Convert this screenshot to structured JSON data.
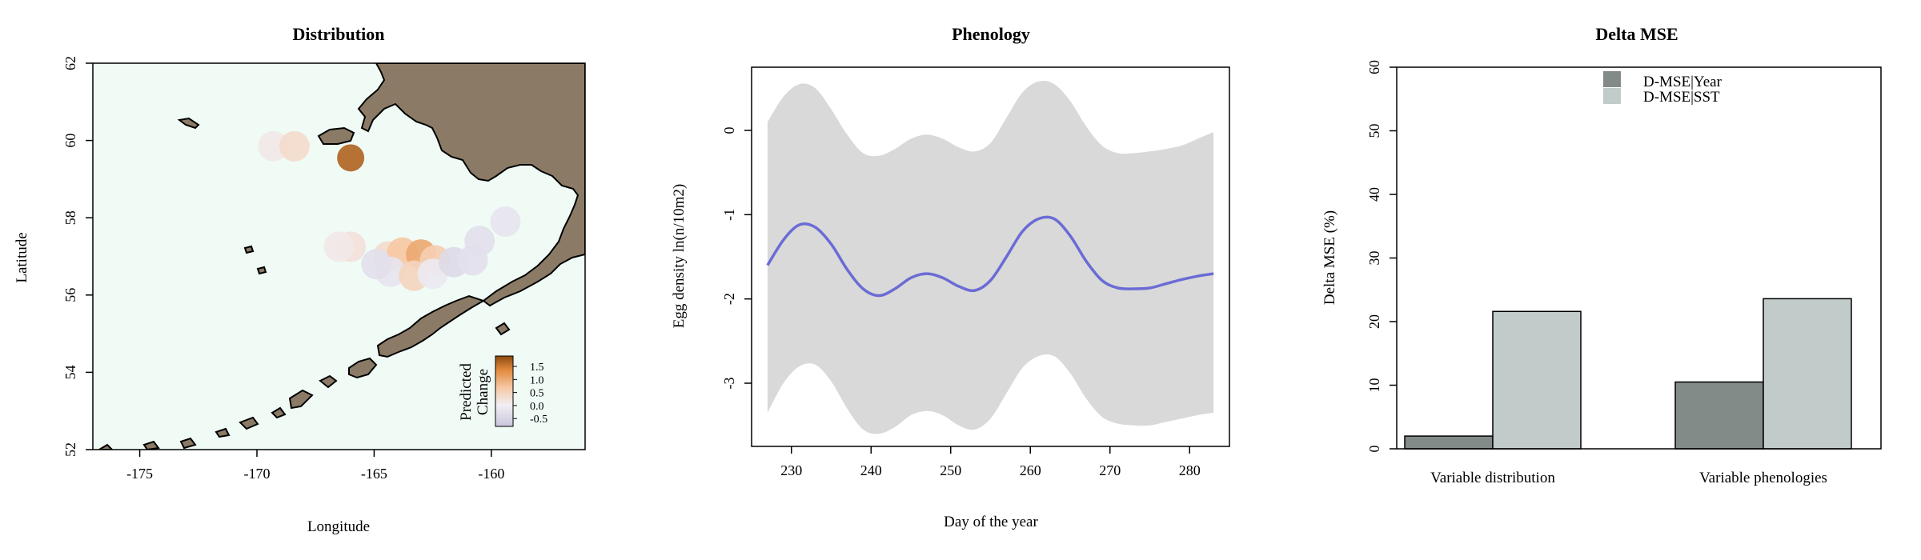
{
  "chart_data": [
    {
      "type": "heatmap",
      "title": "Distribution",
      "xlabel": "Longitude",
      "ylabel": "Latitude",
      "xlim": [
        -177,
        -156
      ],
      "ylim": [
        52,
        62
      ],
      "x_ticks": [
        -175,
        -170,
        -165,
        -160
      ],
      "y_ticks": [
        52,
        54,
        56,
        58,
        60,
        62
      ],
      "x_tick_labels": [
        "-175",
        "-170",
        "-165",
        "-160"
      ],
      "y_tick_labels": [
        "52",
        "54",
        "56",
        "58",
        "60",
        "62"
      ],
      "legend": {
        "title_lines": [
          "Predicted",
          "Change"
        ],
        "ticks": [
          1.5,
          1.0,
          0.5,
          0.0,
          -0.5
        ],
        "tick_labels": [
          "1.5",
          "1.0",
          "0.5",
          "0.0",
          "-0.5"
        ],
        "range": [
          -0.8,
          1.9
        ],
        "placement": "bottom-right"
      },
      "colors": {
        "ocean": "#f0fbf6",
        "land": "#8b7b66",
        "coastline": "#000000",
        "high": "#9b5012",
        "mid": "#f5c9a6",
        "low": "#d8d5e6"
      },
      "cells": [
        {
          "lon": -169.3,
          "lat": 59.85,
          "value": 0.1
        },
        {
          "lon": -168.4,
          "lat": 59.85,
          "value": 0.3
        },
        {
          "lon": -166.0,
          "lat": 59.55,
          "value": 1.6
        },
        {
          "lon": -166.0,
          "lat": 57.25,
          "value": 0.2
        },
        {
          "lon": -166.5,
          "lat": 57.25,
          "value": 0.1
        },
        {
          "lon": -164.4,
          "lat": 57.0,
          "value": 0.3
        },
        {
          "lon": -163.8,
          "lat": 57.1,
          "value": 0.6
        },
        {
          "lon": -163.0,
          "lat": 57.05,
          "value": 0.9
        },
        {
          "lon": -162.4,
          "lat": 56.9,
          "value": 0.5
        },
        {
          "lon": -164.3,
          "lat": 56.6,
          "value": -0.2
        },
        {
          "lon": -163.3,
          "lat": 56.5,
          "value": 0.4
        },
        {
          "lon": -162.5,
          "lat": 56.55,
          "value": -0.1
        },
        {
          "lon": -161.6,
          "lat": 56.85,
          "value": -0.4
        },
        {
          "lon": -160.8,
          "lat": 56.9,
          "value": -0.3
        },
        {
          "lon": -160.5,
          "lat": 57.4,
          "value": -0.3
        },
        {
          "lon": -159.4,
          "lat": 57.9,
          "value": -0.2
        },
        {
          "lon": -164.9,
          "lat": 56.8,
          "value": -0.3
        }
      ]
    },
    {
      "type": "line",
      "title": "Phenology",
      "xlabel": "Day of the year",
      "ylabel": "Egg density ln(n/10m2)",
      "xlim": [
        225,
        285
      ],
      "ylim": [
        -3.75,
        0.75
      ],
      "x_ticks": [
        230,
        240,
        250,
        260,
        270,
        280
      ],
      "y_ticks": [
        0,
        -1,
        -2,
        -3
      ],
      "x_tick_labels": [
        "230",
        "240",
        "250",
        "260",
        "270",
        "280"
      ],
      "y_tick_labels": [
        "0",
        "-1",
        "-2",
        "-3"
      ],
      "colors": {
        "line": "#6b6bd6",
        "band": "#d9d9d9"
      },
      "x": [
        227,
        229,
        231,
        233,
        235,
        237,
        239,
        241,
        243,
        245,
        247,
        249,
        251,
        253,
        255,
        257,
        259,
        261,
        263,
        265,
        267,
        269,
        271,
        273,
        275,
        277,
        279,
        281,
        283
      ],
      "y": [
        -1.6,
        -1.3,
        -1.12,
        -1.15,
        -1.35,
        -1.65,
        -1.88,
        -1.96,
        -1.88,
        -1.75,
        -1.7,
        -1.75,
        -1.85,
        -1.9,
        -1.78,
        -1.5,
        -1.2,
        -1.05,
        -1.05,
        -1.25,
        -1.55,
        -1.78,
        -1.87,
        -1.88,
        -1.87,
        -1.82,
        -1.77,
        -1.73,
        -1.7
      ],
      "upper": [
        0.1,
        0.4,
        0.55,
        0.5,
        0.25,
        -0.05,
        -0.27,
        -0.3,
        -0.22,
        -0.1,
        -0.05,
        -0.1,
        -0.2,
        -0.25,
        -0.15,
        0.15,
        0.45,
        0.58,
        0.55,
        0.35,
        0.05,
        -0.18,
        -0.27,
        -0.27,
        -0.25,
        -0.22,
        -0.18,
        -0.1,
        -0.02
      ],
      "lower": [
        -3.35,
        -3.0,
        -2.8,
        -2.78,
        -2.98,
        -3.3,
        -3.55,
        -3.6,
        -3.52,
        -3.38,
        -3.33,
        -3.38,
        -3.5,
        -3.55,
        -3.42,
        -3.12,
        -2.82,
        -2.68,
        -2.68,
        -2.88,
        -3.18,
        -3.4,
        -3.48,
        -3.5,
        -3.5,
        -3.46,
        -3.42,
        -3.38,
        -3.35
      ]
    },
    {
      "type": "bar",
      "title": "Delta MSE",
      "xlabel": "",
      "ylabel": "Delta MSE (%)",
      "ylim": [
        0,
        60
      ],
      "y_ticks": [
        0,
        10,
        20,
        30,
        40,
        50,
        60
      ],
      "y_tick_labels": [
        "0",
        "10",
        "20",
        "30",
        "40",
        "50",
        "60"
      ],
      "categories": [
        "Variable distribution",
        "Variable phenologies"
      ],
      "series": [
        {
          "name": "D-MSE|Year",
          "values": [
            2.0,
            10.5
          ],
          "color": "#838b89"
        },
        {
          "name": "D-MSE|SST",
          "values": [
            21.6,
            23.6
          ],
          "color": "#c1cbca"
        }
      ],
      "legend_placement": "top-center"
    }
  ]
}
